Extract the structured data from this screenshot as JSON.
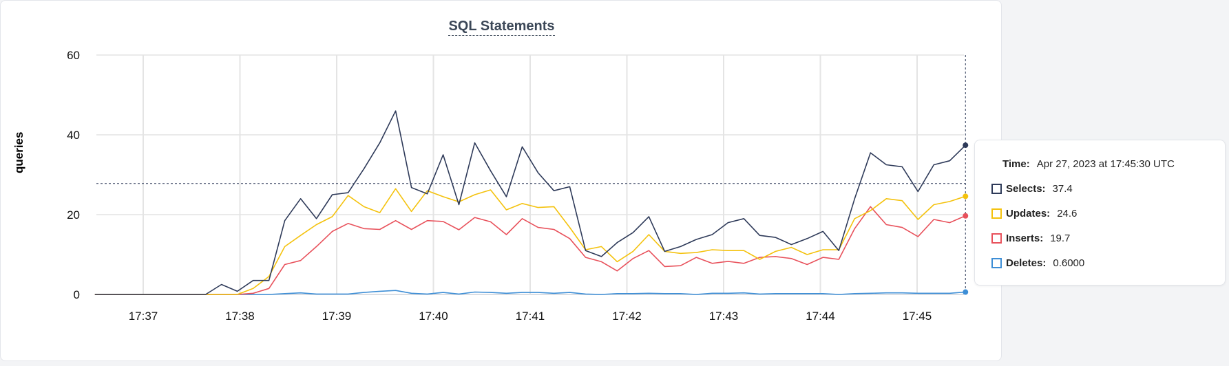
{
  "chart_data": {
    "type": "line",
    "title": "SQL Statements",
    "ylabel": "queries",
    "xlabel": "",
    "ylim": [
      0,
      60
    ],
    "yticks": [
      0,
      20,
      40,
      60
    ],
    "x_start_min": 36.5,
    "x_step_min": 0.1667,
    "xticks": [
      "17:37",
      "17:38",
      "17:39",
      "17:40",
      "17:41",
      "17:42",
      "17:43",
      "17:44",
      "17:45"
    ],
    "grid": true,
    "series": [
      {
        "name": "Selects",
        "color": "#2e3a59",
        "values": [
          0,
          0,
          0,
          0,
          0,
          0,
          0,
          0,
          2.5,
          0.8,
          3.5,
          3.5,
          18.5,
          24,
          19,
          25,
          25.5,
          31.5,
          38,
          46,
          26.8,
          25.2,
          35,
          22.5,
          38,
          31,
          24.5,
          37,
          30.5,
          26,
          27,
          11,
          9.5,
          13,
          15.5,
          19.5,
          10.8,
          12,
          13.8,
          15,
          18,
          19,
          14.8,
          14.3,
          12.5,
          14,
          15.8,
          11,
          24,
          35.5,
          32.5,
          32,
          25.8,
          32.5,
          33.5,
          37.4
        ]
      },
      {
        "name": "Updates",
        "color": "#f4c20d",
        "values": [
          0,
          0,
          0,
          0,
          0,
          0,
          0,
          0,
          0,
          0,
          1.5,
          4.5,
          12,
          14.8,
          17.5,
          19.5,
          24.8,
          22,
          20.5,
          26.5,
          20.8,
          26,
          24.5,
          23.2,
          25,
          26.2,
          21.2,
          22.8,
          21.8,
          22,
          16.8,
          11.2,
          12,
          8.2,
          10.8,
          15,
          10.8,
          10.3,
          10.5,
          11.2,
          11,
          11,
          8.8,
          10.8,
          11.8,
          10,
          11.2,
          11.2,
          19,
          21,
          24,
          23.5,
          18.8,
          22.5,
          23.3,
          24.6
        ]
      },
      {
        "name": "Inserts",
        "color": "#e8515b",
        "values": [
          0,
          0,
          0,
          0,
          0,
          0,
          0,
          0,
          0,
          0,
          0.3,
          1.5,
          7.5,
          8.5,
          12,
          15.8,
          17.8,
          16.5,
          16.3,
          18.5,
          16.3,
          18.5,
          18.3,
          16.2,
          19.3,
          18.2,
          15,
          19,
          16.8,
          16.3,
          14,
          9.3,
          8.2,
          5.9,
          9,
          11,
          7,
          7.2,
          9.3,
          7.8,
          8.3,
          7.8,
          9.3,
          9.5,
          9,
          7.5,
          9.3,
          8.8,
          16.5,
          22,
          17.5,
          16.8,
          14.5,
          18.8,
          18,
          19.7
        ]
      },
      {
        "name": "Deletes",
        "color": "#3d8ed6",
        "values": [
          0,
          0,
          0,
          0,
          0,
          0,
          0,
          0,
          0,
          0,
          0,
          0,
          0.2,
          0.4,
          0.1,
          0.1,
          0.1,
          0.5,
          0.8,
          1,
          0.3,
          0.1,
          0.5,
          0.1,
          0.6,
          0.5,
          0.3,
          0.5,
          0.5,
          0.3,
          0.5,
          0.1,
          0,
          0.2,
          0.2,
          0.3,
          0.2,
          0.2,
          0,
          0.3,
          0.3,
          0.4,
          0.1,
          0.2,
          0.2,
          0.2,
          0.2,
          0,
          0.2,
          0.3,
          0.4,
          0.4,
          0.3,
          0.3,
          0.3,
          0.6
        ]
      }
    ],
    "hover_value": 27.8
  },
  "tooltip": {
    "time_label": "Time:",
    "time_value": "Apr 27, 2023 at 17:45:30 UTC",
    "rows": [
      {
        "label": "Selects:",
        "value": "37.4",
        "color": "#2e3a59"
      },
      {
        "label": "Updates:",
        "value": "24.6",
        "color": "#f4c20d"
      },
      {
        "label": "Inserts:",
        "value": "19.7",
        "color": "#e8515b"
      },
      {
        "label": "Deletes:",
        "value": "0.6000",
        "color": "#3d8ed6"
      }
    ]
  }
}
